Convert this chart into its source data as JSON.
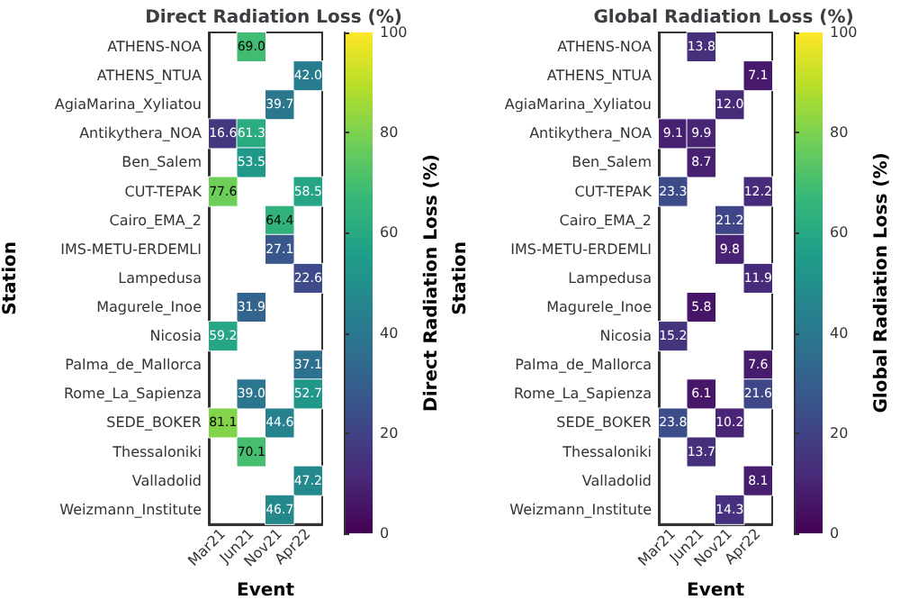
{
  "chart_data": [
    {
      "type": "heatmap",
      "title": "Direct Radiation Loss (%)",
      "xlabel": "Event",
      "ylabel": "Station",
      "clabel": "Direct Radiation Loss (%)",
      "categories": [
        "Mar21",
        "Jun21",
        "Nov21",
        "Apr22"
      ],
      "y_categories": [
        "ATHENS-NOA",
        "ATHENS_NTUA",
        "AgiaMarina_Xyliatou",
        "Antikythera_NOA",
        "Ben_Salem",
        "CUT-TEPAK",
        "Cairo_EMA_2",
        "IMS-METU-ERDEMLI",
        "Lampedusa",
        "Magurele_Inoe",
        "Nicosia",
        "Palma_de_Mallorca",
        "Rome_La_Sapienza",
        "SEDE_BOKER",
        "Thessaloniki",
        "Valladolid",
        "Weizmann_Institute"
      ],
      "cells": [
        [
          null,
          69.0,
          null,
          null
        ],
        [
          null,
          null,
          null,
          42.0
        ],
        [
          null,
          null,
          39.7,
          null
        ],
        [
          16.6,
          61.3,
          null,
          null
        ],
        [
          null,
          53.5,
          null,
          null
        ],
        [
          77.6,
          null,
          null,
          58.5
        ],
        [
          null,
          null,
          64.4,
          null
        ],
        [
          null,
          null,
          27.1,
          null
        ],
        [
          null,
          null,
          null,
          22.6
        ],
        [
          null,
          31.9,
          null,
          null
        ],
        [
          59.2,
          null,
          null,
          null
        ],
        [
          null,
          null,
          null,
          37.1
        ],
        [
          null,
          39.0,
          null,
          52.7
        ],
        [
          81.1,
          null,
          44.6,
          null
        ],
        [
          null,
          70.1,
          null,
          null
        ],
        [
          null,
          null,
          null,
          47.2
        ],
        [
          null,
          null,
          46.7,
          null
        ]
      ],
      "cell_labels": [
        [
          null,
          "69.0",
          null,
          null
        ],
        [
          null,
          null,
          null,
          "42.0"
        ],
        [
          null,
          null,
          "39.7",
          null
        ],
        [
          "16.6",
          "61.3",
          null,
          null
        ],
        [
          null,
          "53.5",
          null,
          null
        ],
        [
          "77.6",
          null,
          null,
          "58.5"
        ],
        [
          null,
          null,
          "64.4",
          null
        ],
        [
          null,
          null,
          "27.1",
          null
        ],
        [
          null,
          null,
          null,
          "22.6"
        ],
        [
          null,
          "31.9",
          null,
          null
        ],
        [
          "59.2",
          null,
          null,
          null
        ],
        [
          null,
          null,
          null,
          "37.1"
        ],
        [
          null,
          "39.0",
          null,
          "52.7"
        ],
        [
          "81.1",
          null,
          "44.6",
          null
        ],
        [
          null,
          "70.1",
          null,
          null
        ],
        [
          null,
          null,
          null,
          "47.2"
        ],
        [
          null,
          null,
          "46.7",
          null
        ]
      ],
      "clim": [
        0,
        100
      ],
      "cticks": [
        0,
        20,
        40,
        60,
        80,
        100
      ],
      "data_labels": true
    },
    {
      "type": "heatmap",
      "title": "Global Radiation Loss (%)",
      "xlabel": "Event",
      "ylabel": "Station",
      "clabel": "Global Radiation Loss (%)",
      "categories": [
        "Mar21",
        "Jun21",
        "Nov21",
        "Apr22"
      ],
      "y_categories": [
        "ATHENS-NOA",
        "ATHENS_NTUA",
        "AgiaMarina_Xyliatou",
        "Antikythera_NOA",
        "Ben_Salem",
        "CUT-TEPAK",
        "Cairo_EMA_2",
        "IMS-METU-ERDEMLI",
        "Lampedusa",
        "Magurele_Inoe",
        "Nicosia",
        "Palma_de_Mallorca",
        "Rome_La_Sapienza",
        "SEDE_BOKER",
        "Thessaloniki",
        "Valladolid",
        "Weizmann_Institute"
      ],
      "cells": [
        [
          null,
          13.8,
          null,
          null
        ],
        [
          null,
          null,
          null,
          7.1
        ],
        [
          null,
          null,
          12.0,
          null
        ],
        [
          9.1,
          9.9,
          null,
          null
        ],
        [
          null,
          8.7,
          null,
          null
        ],
        [
          23.3,
          null,
          null,
          12.2
        ],
        [
          null,
          null,
          21.2,
          null
        ],
        [
          null,
          null,
          9.8,
          null
        ],
        [
          null,
          null,
          null,
          11.9
        ],
        [
          null,
          5.8,
          null,
          null
        ],
        [
          15.2,
          null,
          null,
          null
        ],
        [
          null,
          null,
          null,
          7.6
        ],
        [
          null,
          6.1,
          null,
          21.6
        ],
        [
          23.8,
          null,
          10.2,
          null
        ],
        [
          null,
          13.7,
          null,
          null
        ],
        [
          null,
          null,
          null,
          8.1
        ],
        [
          null,
          null,
          14.3,
          null
        ]
      ],
      "cell_labels": [
        [
          null,
          "13.8",
          null,
          null
        ],
        [
          null,
          null,
          null,
          "7.1"
        ],
        [
          null,
          null,
          "12.0",
          null
        ],
        [
          "9.1",
          "9.9",
          null,
          null
        ],
        [
          null,
          "8.7",
          null,
          null
        ],
        [
          "23.3",
          null,
          null,
          "12.2"
        ],
        [
          null,
          null,
          "21.2",
          null
        ],
        [
          null,
          null,
          "9.8",
          null
        ],
        [
          null,
          null,
          null,
          "11.9"
        ],
        [
          null,
          "5.8",
          null,
          null
        ],
        [
          "15.2",
          null,
          null,
          null
        ],
        [
          null,
          null,
          null,
          "7.6"
        ],
        [
          null,
          "6.1",
          null,
          "21.6"
        ],
        [
          "23.8",
          null,
          "10.2",
          null
        ],
        [
          null,
          "13.7",
          null,
          null
        ],
        [
          null,
          null,
          null,
          "8.1"
        ],
        [
          null,
          null,
          "14.3",
          null
        ]
      ],
      "clim": [
        0,
        100
      ],
      "cticks": [
        0,
        20,
        40,
        60,
        80,
        100
      ],
      "data_labels": true
    }
  ]
}
